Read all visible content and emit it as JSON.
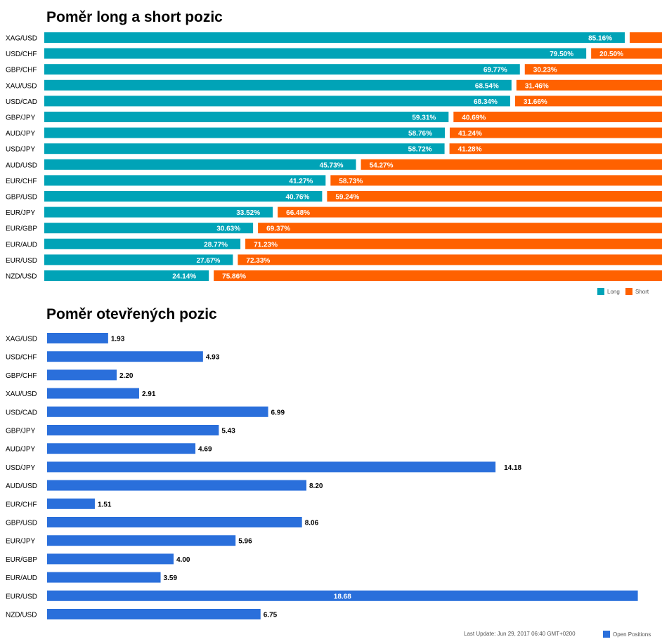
{
  "colors": {
    "long": "#00a3b7",
    "short": "#ff6100",
    "open": "#2a6fdb"
  },
  "chart_data": [
    {
      "type": "bar",
      "orientation": "horizontal",
      "stacked": true,
      "title": "Poměr long a short pozic",
      "categories": [
        "XAG/USD",
        "USD/CHF",
        "GBP/CHF",
        "XAU/USD",
        "USD/CAD",
        "GBP/JPY",
        "AUD/JPY",
        "USD/JPY",
        "AUD/USD",
        "EUR/CHF",
        "GBP/USD",
        "EUR/JPY",
        "EUR/GBP",
        "EUR/AUD",
        "EUR/USD",
        "NZD/USD"
      ],
      "series": [
        {
          "name": "Long",
          "values": [
            85.16,
            79.5,
            69.77,
            68.54,
            68.34,
            59.31,
            58.76,
            58.72,
            45.73,
            41.27,
            40.76,
            33.52,
            30.63,
            28.77,
            27.67,
            24.14
          ]
        },
        {
          "name": "Short",
          "values": [
            null,
            20.5,
            30.23,
            31.46,
            31.66,
            40.69,
            41.24,
            41.28,
            54.27,
            58.73,
            59.24,
            66.48,
            69.37,
            71.23,
            72.33,
            75.86
          ]
        }
      ],
      "value_labels": {
        "long": [
          "85.16%",
          "79.50%",
          "69.77%",
          "68.54%",
          "68.34%",
          "59.31%",
          "58.76%",
          "58.72%",
          "45.73%",
          "41.27%",
          "40.76%",
          "33.52%",
          "30.63%",
          "28.77%",
          "27.67%",
          "24.14%"
        ],
        "short": [
          "",
          "20.50%",
          "30.23%",
          "31.46%",
          "31.66%",
          "40.69%",
          "41.24%",
          "41.28%",
          "54.27%",
          "58.73%",
          "59.24%",
          "66.48%",
          "69.37%",
          "71.23%",
          "72.33%",
          "75.86%"
        ]
      },
      "legend": {
        "position": "bottom-right",
        "items": [
          "Long",
          "Short"
        ]
      }
    },
    {
      "type": "bar",
      "orientation": "horizontal",
      "title": "Poměr otevřených pozic",
      "categories": [
        "XAG/USD",
        "USD/CHF",
        "GBP/CHF",
        "XAU/USD",
        "USD/CAD",
        "GBP/JPY",
        "AUD/JPY",
        "USD/JPY",
        "AUD/USD",
        "EUR/CHF",
        "GBP/USD",
        "EUR/JPY",
        "EUR/GBP",
        "EUR/AUD",
        "EUR/USD",
        "NZD/USD"
      ],
      "series": [
        {
          "name": "Open Positions",
          "values": [
            1.93,
            4.93,
            2.2,
            2.91,
            6.99,
            5.43,
            4.69,
            14.18,
            8.2,
            1.51,
            8.06,
            5.96,
            4.0,
            3.59,
            18.68,
            6.75
          ]
        }
      ],
      "value_labels": [
        "1.93",
        "4.93",
        "2.20",
        "2.91",
        "6.99",
        "5.43",
        "4.69",
        "14.18",
        "8.20",
        "1.51",
        "8.06",
        "5.96",
        "4.00",
        "3.59",
        "18.68",
        "6.75"
      ],
      "legend": {
        "position": "bottom-right",
        "items": [
          "Open Positions"
        ]
      },
      "footer": "Last Update: Jun 29, 2017 06:40 GMT+0200"
    }
  ]
}
